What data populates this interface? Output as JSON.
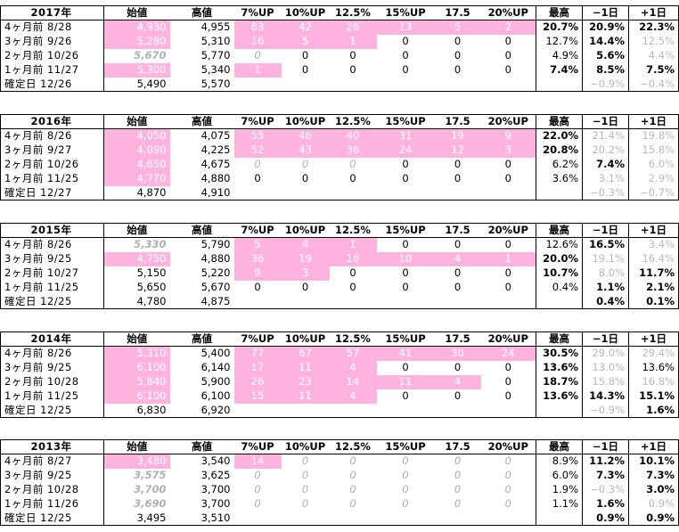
{
  "headers": [
    "始値",
    "高値",
    "7%UP",
    "10%UP",
    "12.5%",
    "15%UP",
    "17.5",
    "20%UP",
    "最高",
    "−1日",
    "+1日"
  ],
  "blocks": [
    {
      "year": "2017年",
      "rows": [
        {
          "label": "4ヶ月前  8/28",
          "open": "4,930",
          "high": "4,955",
          "c": [
            "63",
            "42",
            "26",
            "13",
            "5",
            "2"
          ],
          "max": "20.7%",
          "m1": "20.9%",
          "p1": "22.3%"
        },
        {
          "label": "3ヶ月前  9/26",
          "open": "5,280",
          "high": "5,310",
          "c": [
            "16",
            "5",
            "1",
            "0",
            "0",
            "0"
          ],
          "max": "12.7%",
          "m1": "14.4%",
          "p1": "12.5%"
        },
        {
          "label": "2ヶ月前  10/26",
          "open": "5,670",
          "high": "5,770",
          "c": [
            "0",
            "0",
            "0",
            "0",
            "0",
            "0"
          ],
          "max": "4.9%",
          "m1": "5.6%",
          "p1": "4.4%"
        },
        {
          "label": "1ヶ月前  11/27",
          "open": "5,300",
          "high": "5,340",
          "c": [
            "1",
            "0",
            "0",
            "0",
            "0",
            "0"
          ],
          "max": "7.4%",
          "m1": "8.5%",
          "p1": "7.5%"
        },
        {
          "label": "確定日  12/26",
          "open": "5,490",
          "high": "5,570",
          "c": [
            "",
            "",
            "",
            "",
            "",
            ""
          ],
          "max": "",
          "m1": "−0.9%",
          "p1": "−0.4%"
        }
      ]
    },
    {
      "year": "2016年",
      "rows": [
        {
          "label": "4ヶ月前  8/26",
          "open": "4,050",
          "high": "4,075",
          "c": [
            "55",
            "46",
            "40",
            "31",
            "19",
            "9"
          ],
          "max": "22.0%",
          "m1": "21.4%",
          "p1": "19.8%"
        },
        {
          "label": "3ヶ月前  9/27",
          "open": "4,090",
          "high": "4,225",
          "c": [
            "52",
            "43",
            "36",
            "24",
            "12",
            "3"
          ],
          "max": "20.8%",
          "m1": "20.2%",
          "p1": "15.8%"
        },
        {
          "label": "2ヶ月前  10/26",
          "open": "4,650",
          "high": "4,675",
          "c": [
            "0",
            "0",
            "0",
            "0",
            "0",
            "0"
          ],
          "max": "6.2%",
          "m1": "7.4%",
          "p1": "6.0%"
        },
        {
          "label": "1ヶ月前  11/25",
          "open": "4,770",
          "high": "4,880",
          "c": [
            "0",
            "0",
            "0",
            "0",
            "0",
            "0"
          ],
          "max": "3.6%",
          "m1": "3.1%",
          "p1": "2.9%"
        },
        {
          "label": "確定日  12/27",
          "open": "4,870",
          "high": "4,910",
          "c": [
            "",
            "",
            "",
            "",
            "",
            ""
          ],
          "max": "",
          "m1": "−0.3%",
          "p1": "−0.7%"
        }
      ]
    },
    {
      "year": "2015年",
      "rows": [
        {
          "label": "4ヶ月前  8/26",
          "open": "5,330",
          "high": "5,790",
          "c": [
            "5",
            "4",
            "1",
            "0",
            "0",
            "0"
          ],
          "max": "12.6%",
          "m1": "16.5%",
          "p1": "3.4%"
        },
        {
          "label": "3ヶ月前  9/25",
          "open": "4,750",
          "high": "4,880",
          "c": [
            "36",
            "19",
            "16",
            "10",
            "4",
            "1"
          ],
          "max": "20.0%",
          "m1": "19.1%",
          "p1": "16.4%"
        },
        {
          "label": "2ヶ月前  10/27",
          "open": "5,150",
          "high": "5,220",
          "c": [
            "9",
            "3",
            "0",
            "0",
            "0",
            "0"
          ],
          "max": "10.7%",
          "m1": "8.0%",
          "p1": "11.7%"
        },
        {
          "label": "1ヶ月前  11/25",
          "open": "5,650",
          "high": "5,670",
          "c": [
            "0",
            "0",
            "0",
            "0",
            "0",
            "0"
          ],
          "max": "0.4%",
          "m1": "1.1%",
          "p1": "2.1%"
        },
        {
          "label": "確定日  12/25",
          "open": "4,780",
          "high": "4,875",
          "c": [
            "",
            "",
            "",
            "",
            "",
            ""
          ],
          "max": "",
          "m1": "0.4%",
          "p1": "0.1%"
        }
      ]
    },
    {
      "year": "2014年",
      "rows": [
        {
          "label": "4ヶ月前  8/26",
          "open": "5,310",
          "high": "5,400",
          "c": [
            "77",
            "67",
            "57",
            "41",
            "30",
            "24"
          ],
          "max": "30.5%",
          "m1": "29.0%",
          "p1": "29.4%"
        },
        {
          "label": "3ヶ月前  9/25",
          "open": "6,100",
          "high": "6,140",
          "c": [
            "17",
            "11",
            "4",
            "0",
            "0",
            "0"
          ],
          "max": "13.6%",
          "m1": "13.0%",
          "p1": "13.6%"
        },
        {
          "label": "2ヶ月前  10/28",
          "open": "5,840",
          "high": "5,900",
          "c": [
            "26",
            "23",
            "14",
            "11",
            "4",
            "0"
          ],
          "max": "18.7%",
          "m1": "15.8%",
          "p1": "16.8%"
        },
        {
          "label": "1ヶ月前  11/25",
          "open": "6,100",
          "high": "6,100",
          "c": [
            "15",
            "11",
            "4",
            "0",
            "0",
            "0"
          ],
          "max": "13.6%",
          "m1": "14.3%",
          "p1": "15.1%"
        },
        {
          "label": "確定日  12/25",
          "open": "6,830",
          "high": "6,920",
          "c": [
            "",
            "",
            "",
            "",
            "",
            ""
          ],
          "max": "",
          "m1": "−0.9%",
          "p1": "1.6%"
        }
      ]
    },
    {
      "year": "2013年",
      "rows": [
        {
          "label": "4ヶ月前  8/27",
          "open": "3,480",
          "high": "3,540",
          "c": [
            "14",
            "0",
            "0",
            "0",
            "0",
            "0"
          ],
          "max": "8.9%",
          "m1": "11.2%",
          "p1": "10.1%"
        },
        {
          "label": "3ヶ月前  9/25",
          "open": "3,575",
          "high": "3,625",
          "c": [
            "0",
            "0",
            "0",
            "0",
            "0",
            "0"
          ],
          "max": "6.0%",
          "m1": "7.3%",
          "p1": "7.3%"
        },
        {
          "label": "2ヶ月前  10/28",
          "open": "3,700",
          "high": "3,700",
          "c": [
            "0",
            "0",
            "0",
            "0",
            "0",
            "0"
          ],
          "max": "1.9%",
          "m1": "−0.3%",
          "p1": "3.0%"
        },
        {
          "label": "1ヶ月前  11/26",
          "open": "3,690",
          "high": "3,700",
          "c": [
            "0",
            "0",
            "0",
            "0",
            "0",
            "0"
          ],
          "max": "1.1%",
          "m1": "1.6%",
          "p1": "0.9%"
        },
        {
          "label": "確定日  12/25",
          "open": "3,495",
          "high": "3,510",
          "c": [
            "",
            "",
            "",
            "",
            "",
            ""
          ],
          "max": "",
          "m1": "0.9%",
          "p1": "0.9%"
        }
      ]
    }
  ]
}
